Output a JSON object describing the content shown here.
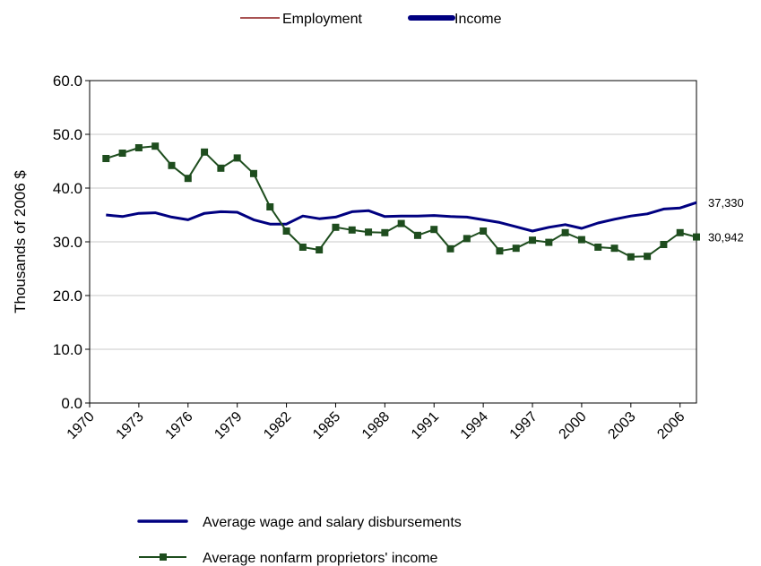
{
  "top_legend": {
    "items": [
      {
        "label": "Employment",
        "color": "#8b1a1a"
      },
      {
        "label": "Income",
        "color": "#000080"
      }
    ]
  },
  "chart_data": {
    "type": "line",
    "ylabel": "Thousands of 2006 $",
    "xlabel": "",
    "ylim": [
      0,
      60
    ],
    "yticks": [
      "0.0",
      "10.0",
      "20.0",
      "30.0",
      "40.0",
      "50.0",
      "60.0"
    ],
    "xlim": [
      1970,
      2007
    ],
    "xticks": [
      "1970",
      "1973",
      "1976",
      "1979",
      "1982",
      "1985",
      "1988",
      "1991",
      "1994",
      "1997",
      "2000",
      "2003",
      "2006"
    ],
    "grid": "horizontal",
    "legend_position": "bottom",
    "x": [
      1971,
      1972,
      1973,
      1974,
      1975,
      1976,
      1977,
      1978,
      1979,
      1980,
      1981,
      1982,
      1983,
      1984,
      1985,
      1986,
      1987,
      1988,
      1989,
      1990,
      1991,
      1992,
      1993,
      1994,
      1995,
      1996,
      1997,
      1998,
      1999,
      2000,
      2001,
      2002,
      2003,
      2004,
      2005,
      2006,
      2007
    ],
    "series": [
      {
        "name": "Average wage and salary disbursements",
        "color": "#000080",
        "marker": "none",
        "end_label": "37,330",
        "values": [
          35.0,
          34.7,
          35.3,
          35.4,
          34.6,
          34.1,
          35.3,
          35.6,
          35.5,
          34.1,
          33.3,
          33.3,
          34.8,
          34.3,
          34.6,
          35.6,
          35.8,
          34.7,
          34.8,
          34.8,
          34.9,
          34.7,
          34.6,
          34.1,
          33.6,
          32.8,
          32.0,
          32.7,
          33.2,
          32.5,
          33.5,
          34.2,
          34.8,
          35.2,
          36.1,
          36.3,
          37.3
        ]
      },
      {
        "name": "Average nonfarm proprietors' income",
        "color": "#1e4d1e",
        "marker": "square",
        "end_label": "30,942",
        "values": [
          45.5,
          46.5,
          47.5,
          47.8,
          44.2,
          41.8,
          46.7,
          43.7,
          45.6,
          42.7,
          36.5,
          32.0,
          29.0,
          28.5,
          32.7,
          32.2,
          31.8,
          31.7,
          33.4,
          31.2,
          32.3,
          28.7,
          30.6,
          32.0,
          28.3,
          28.8,
          30.3,
          29.9,
          31.7,
          30.4,
          29.0,
          28.8,
          27.2,
          27.3,
          29.5,
          31.7,
          30.9
        ]
      }
    ]
  }
}
